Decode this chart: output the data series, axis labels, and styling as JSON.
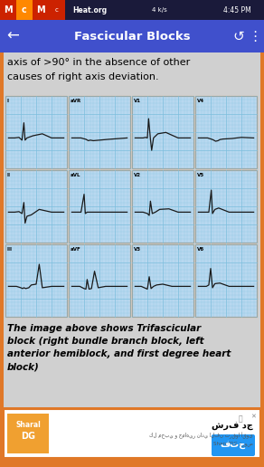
{
  "title": "Fascicular Blocks",
  "bg_color": "#d0d0d0",
  "header_color": "#4050cc",
  "header_text_color": "#ffffff",
  "orange_border": "#e07828",
  "top_text_line1": "axis of >90° in the absence of other",
  "top_text_line2": "causes of right axis deviation.",
  "ecg_labels": [
    [
      "I",
      "aVR",
      "V1",
      "V4"
    ],
    [
      "II",
      "aVL",
      "V2",
      "V5"
    ],
    [
      "III",
      "aVF",
      "V3",
      "V6"
    ]
  ],
  "ecg_grid_color": "#7bbedd",
  "ecg_line_color": "#1a1a1a",
  "ecg_bg": "#b8d8f0",
  "caption_text": "The image above shows Trifascicular\nblock (right bundle branch block, left\nanterior hemiblock, and first degree heart\nblock)",
  "ad_button_color": "#2196f3",
  "status_bg": "#1a1a3a",
  "logo_red": "#dd2222",
  "logo_orange": "#ff8800"
}
